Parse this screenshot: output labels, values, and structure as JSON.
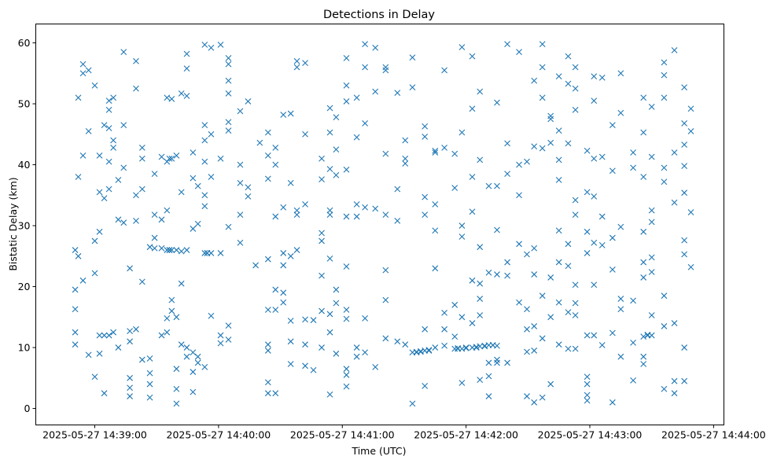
{
  "chart_data": {
    "type": "scatter",
    "title": "Detections in Delay",
    "xlabel": "Time (UTC)",
    "ylabel": "Bistatic Delay (km)",
    "x_units": "seconds after 2025-05-27 14:39:00",
    "xlim": [
      -28.6,
      305
    ],
    "ylim": [
      -2.7,
      63.1
    ],
    "grid": false,
    "marker": "x",
    "color": "#1f77b4",
    "x_ticks": [
      {
        "value": 0,
        "label": "2025-05-27 14:39:00"
      },
      {
        "value": 60,
        "label": "2025-05-27 14:40:00"
      },
      {
        "value": 120,
        "label": "2025-05-27 14:41:00"
      },
      {
        "value": 180,
        "label": "2025-05-27 14:42:00"
      },
      {
        "value": 240,
        "label": "2025-05-27 14:43:00"
      },
      {
        "value": 300,
        "label": "2025-05-27 14:44:00"
      }
    ],
    "y_ticks": [
      {
        "value": 0,
        "label": "0"
      },
      {
        "value": 10,
        "label": "10"
      },
      {
        "value": 20,
        "label": "20"
      },
      {
        "value": 30,
        "label": "30"
      },
      {
        "value": 40,
        "label": "40"
      },
      {
        "value": 50,
        "label": "50"
      },
      {
        "value": 60,
        "label": "60"
      }
    ],
    "columns": [
      [
        -9.5,
        [
          19.5,
          12.5,
          10.5,
          16.3,
          26
        ]
      ],
      [
        -8,
        [
          51,
          38,
          25
        ]
      ],
      [
        -5.7,
        [
          41.5,
          55,
          56.5,
          21
        ]
      ],
      [
        -3,
        [
          8.8,
          45.5,
          55.5
        ]
      ],
      [
        0,
        [
          53,
          27.5,
          22.2,
          5.2
        ]
      ],
      [
        2.3,
        [
          41.5,
          35.5,
          29,
          9,
          12
        ]
      ],
      [
        4.6,
        [
          46.5,
          34.5,
          2.5,
          12
        ]
      ],
      [
        6.9,
        [
          40.5,
          49,
          46,
          36,
          12,
          50.5
        ]
      ],
      [
        9,
        [
          51,
          44,
          42.8,
          12.5
        ]
      ],
      [
        11.4,
        [
          31,
          37.5,
          10
        ]
      ],
      [
        14,
        [
          58.5,
          46.5,
          39.5,
          30.5
        ]
      ],
      [
        17,
        [
          12.7,
          11,
          23,
          2,
          5,
          3.4
        ]
      ],
      [
        20,
        [
          52.5,
          35,
          30.8,
          57,
          13
        ]
      ],
      [
        23,
        [
          41,
          36,
          42.8,
          8,
          20.8
        ]
      ],
      [
        26.7,
        [
          26.5,
          8.2,
          5.8,
          1.8,
          4
        ]
      ],
      [
        29,
        [
          31.8,
          26.3,
          28,
          38.5
        ]
      ],
      [
        32.4,
        [
          41.3,
          31,
          12,
          26.3
        ]
      ],
      [
        35,
        [
          51,
          40.5,
          32.5,
          14.8,
          12.5,
          26
        ]
      ],
      [
        36.2,
        [
          26,
          26,
          41
        ]
      ],
      [
        37.3,
        [
          41,
          26,
          17.8,
          16,
          50.8
        ]
      ],
      [
        39.6,
        [
          26,
          41.5,
          0.8,
          3.2,
          6.5,
          15
        ]
      ],
      [
        42,
        [
          51.7,
          35.5,
          25.8,
          20.5,
          10.5
        ]
      ],
      [
        44.6,
        [
          58.2,
          55.8,
          51.3,
          26,
          8.5,
          10
        ]
      ],
      [
        47.6,
        [
          42,
          37.8,
          29.5,
          2.7,
          9.2,
          6
        ]
      ],
      [
        50,
        [
          36.5,
          30.3,
          8.5,
          7.5
        ]
      ],
      [
        53.3,
        [
          59.7,
          46.5,
          44,
          40.5,
          35,
          33.2,
          25.5,
          6.8
        ]
      ],
      [
        54.5,
        [
          25.5,
          25.5
        ]
      ],
      [
        56.4,
        [
          59.2,
          45,
          25.5,
          15.2,
          38
        ]
      ],
      [
        61,
        [
          59.7,
          25.5,
          41,
          10.7,
          12
        ]
      ],
      [
        64.8,
        [
          53.8,
          51.7,
          47,
          57.5,
          56.5,
          45.6,
          29.8,
          13.6,
          11.3
        ]
      ],
      [
        70.5,
        [
          48.8,
          37,
          31.8,
          27.2,
          40
        ]
      ],
      [
        74.3,
        [
          50.4,
          36.3,
          34.8
        ]
      ],
      [
        78,
        [
          23.5
        ]
      ],
      [
        80,
        [
          43.6
        ]
      ],
      [
        84,
        [
          41.5,
          37.7,
          45.3,
          24.5,
          16.2,
          10.5,
          9.5,
          4.3,
          2.5
        ]
      ],
      [
        87.6,
        [
          42.8,
          40,
          31.5,
          19.5,
          16.2,
          2.5
        ]
      ],
      [
        91.4,
        [
          48.2,
          33,
          23.5,
          25.5,
          19,
          17.4
        ]
      ],
      [
        95,
        [
          48.4,
          37,
          25,
          14.4,
          11,
          7.3
        ]
      ],
      [
        98,
        [
          57,
          56,
          32.5,
          31.8,
          26
        ]
      ],
      [
        102,
        [
          56.7,
          45,
          33.5,
          10.5,
          7,
          14.6
        ]
      ],
      [
        106,
        [
          6.3,
          14.5
        ]
      ],
      [
        110,
        [
          41,
          37.6,
          28.8,
          27.5,
          21.8,
          16,
          10
        ]
      ],
      [
        114,
        [
          49.3,
          45.3,
          39.3,
          32.5,
          31.8,
          24.6,
          15.5,
          2.3,
          12.5
        ]
      ],
      [
        117,
        [
          47.8,
          42.5,
          38.3,
          19.5,
          17.3,
          9
        ]
      ],
      [
        122,
        [
          57.5,
          53,
          50.4,
          39.2,
          31.5,
          23.3,
          16.2,
          14.7,
          6.5,
          5.5,
          3.6
        ]
      ],
      [
        127,
        [
          51,
          44.5,
          33.5,
          31.5,
          10,
          8.5
        ]
      ],
      [
        131,
        [
          59.8,
          56,
          46.8,
          33,
          14.8,
          9.2
        ]
      ],
      [
        136,
        [
          59.2,
          52,
          32.8,
          6.8
        ]
      ],
      [
        141,
        [
          56,
          55.5,
          41.8,
          31.8,
          22.7,
          17.8,
          11.5
        ]
      ],
      [
        146.7,
        [
          51.8,
          36,
          30.8,
          11
        ]
      ],
      [
        150.5,
        [
          44,
          41,
          40.2,
          10.5
        ]
      ],
      [
        154,
        [
          57.6,
          52.7,
          0.8,
          9.2
        ]
      ],
      [
        156,
        [
          9.2,
          9.3
        ]
      ],
      [
        158,
        [
          9.3,
          9.4
        ]
      ],
      [
        160,
        [
          46.3,
          44.6,
          34.7,
          31.8,
          13,
          9.5,
          3.7
        ]
      ],
      [
        162,
        [
          9.5,
          9.6
        ]
      ],
      [
        165,
        [
          42.3,
          33.5,
          29.2,
          23,
          42,
          10
        ]
      ],
      [
        169.5,
        [
          55.5,
          42.8,
          15.7,
          10.3,
          13
        ]
      ],
      [
        174.5,
        [
          41.8,
          36.2,
          17,
          11.8,
          9.8
        ]
      ],
      [
        176,
        [
          9.8,
          9.9
        ]
      ],
      [
        178,
        [
          59.3,
          45.3,
          30,
          28.2,
          15,
          4.2,
          9.8
        ]
      ],
      [
        180,
        [
          9.9,
          10
        ]
      ],
      [
        183,
        [
          57.8,
          49.2,
          38,
          32.3,
          21,
          14,
          10
        ]
      ],
      [
        185,
        [
          10,
          10.1
        ]
      ],
      [
        186.7,
        [
          52,
          40.8,
          26.5,
          20.5,
          18,
          15.3,
          10.2,
          4.7
        ]
      ],
      [
        189,
        [
          10.3,
          10.2
        ]
      ],
      [
        191,
        [
          36.5,
          22.3,
          10.4,
          7.5,
          5.3,
          2
        ]
      ],
      [
        193,
        [
          10.4,
          10.4
        ]
      ],
      [
        195,
        [
          50.2,
          36.5,
          29.3,
          22,
          10.3,
          8,
          7.5
        ]
      ],
      [
        200,
        [
          59.8,
          43.5,
          38.5,
          24,
          21.8,
          7.5
        ]
      ],
      [
        205.7,
        [
          58.5,
          40,
          35,
          27,
          17.4
        ]
      ],
      [
        209.5,
        [
          40.5,
          25.3,
          16.3,
          13,
          9.3,
          2
        ]
      ],
      [
        213,
        [
          53.8,
          43,
          26.3,
          22,
          13.5,
          9.5,
          1
        ]
      ],
      [
        217,
        [
          59.8,
          56,
          51,
          42.7,
          18.5,
          11.5,
          1.8
        ]
      ],
      [
        221,
        [
          48,
          47.5,
          43.6,
          21.5,
          15,
          4
        ]
      ],
      [
        225,
        [
          54.5,
          45.6,
          40.8,
          37.5,
          29.2,
          24,
          17.4,
          10.5
        ]
      ],
      [
        229.5,
        [
          57.8,
          53.3,
          43.5,
          27,
          23.4,
          15.8,
          9.8
        ]
      ],
      [
        233,
        [
          56,
          52.5,
          49,
          34.2,
          31.8,
          20.3,
          17.3,
          15.3,
          9.8
        ]
      ],
      [
        238.7,
        [
          42.3,
          35.5,
          29,
          25.5,
          12,
          1.3,
          4,
          5.2,
          2.2
        ]
      ],
      [
        242,
        [
          54.5,
          50.5,
          41,
          34.8,
          27.2,
          20.3,
          12
        ]
      ],
      [
        246,
        [
          54.3,
          41.3,
          31.5,
          26.8,
          10.4
        ]
      ],
      [
        251,
        [
          46.5,
          39,
          28,
          22.8,
          12.4,
          1
        ]
      ],
      [
        255,
        [
          55,
          48.5,
          29.8,
          18,
          16.3,
          8.5
        ]
      ],
      [
        261,
        [
          42,
          39.5,
          17.7,
          4.6,
          10.8
        ]
      ],
      [
        266,
        [
          51,
          45.3,
          38,
          29,
          24,
          21.5,
          11.8,
          7.3,
          8.5
        ]
      ],
      [
        268,
        [
          12,
          12.1
        ]
      ],
      [
        270,
        [
          49.5,
          41.3,
          32.5,
          30.6,
          24.8,
          22.4,
          15.3,
          12
        ]
      ],
      [
        276,
        [
          56.8,
          54.7,
          51,
          39.5,
          37.2,
          18.5,
          13.5,
          3.2
        ]
      ],
      [
        281,
        [
          58.8,
          42,
          33.8,
          14,
          4.5,
          2.5
        ]
      ],
      [
        285.8,
        [
          52.7,
          46.8,
          43.3,
          39.8,
          35.4,
          27.6,
          25.3,
          10,
          4.5
        ]
      ],
      [
        289,
        [
          49.2,
          45.5,
          32.2,
          23.2
        ]
      ]
    ]
  }
}
